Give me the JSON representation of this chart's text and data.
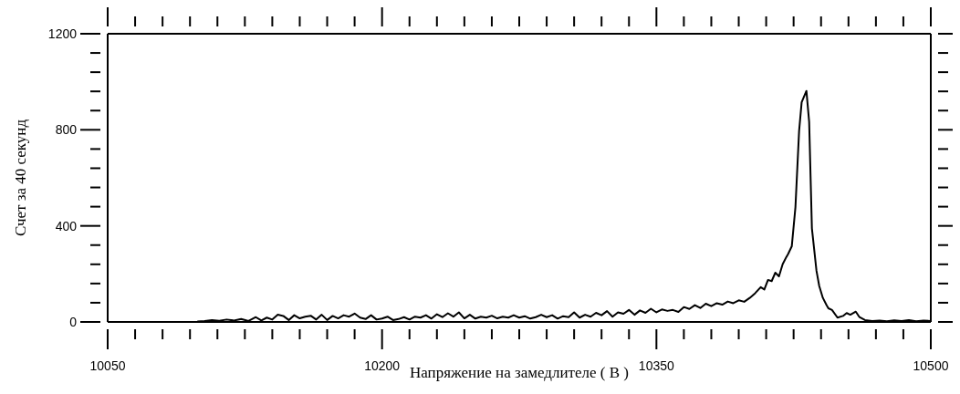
{
  "chart_data": {
    "type": "line",
    "xlabel": "Напряжение на замедлителе ( В )",
    "ylabel": "Счет за 40 секунд",
    "xlim": [
      10050,
      10500
    ],
    "xticks": [
      10050,
      {
        "value": 10065,
        "label": null
      },
      {
        "value": 10080,
        "label": null
      },
      {
        "value": 10095,
        "label": null
      },
      {
        "value": 10110,
        "label": null
      },
      {
        "value": 10125,
        "label": null
      },
      {
        "value": 10140,
        "label": null
      },
      {
        "value": 10155,
        "label": null
      },
      {
        "value": 10170,
        "label": null
      },
      {
        "value": 10185,
        "label": null
      },
      10200,
      {
        "value": 10215,
        "label": null
      },
      {
        "value": 10230,
        "label": null
      },
      {
        "value": 10245,
        "label": null
      },
      {
        "value": 10260,
        "label": null
      },
      {
        "value": 10275,
        "label": null
      },
      {
        "value": 10290,
        "label": null
      },
      {
        "value": 10305,
        "label": null
      },
      {
        "value": 10320,
        "label": null
      },
      {
        "value": 10335,
        "label": null
      },
      10350,
      {
        "value": 10365,
        "label": null
      },
      {
        "value": 10380,
        "label": null
      },
      {
        "value": 10395,
        "label": null
      },
      {
        "value": 10410,
        "label": null
      },
      {
        "value": 10425,
        "label": null
      },
      {
        "value": 10440,
        "label": null
      },
      {
        "value": 10455,
        "label": null
      },
      {
        "value": 10470,
        "label": null
      },
      {
        "value": 10485,
        "label": null
      },
      10500
    ],
    "ylim": [
      0,
      1200
    ],
    "yticks": [
      0,
      {
        "value": 80,
        "label": null
      },
      {
        "value": 160,
        "label": null
      },
      {
        "value": 240,
        "label": null
      },
      {
        "value": 320,
        "label": null
      },
      400,
      {
        "value": 480,
        "label": null
      },
      {
        "value": 560,
        "label": null
      },
      {
        "value": 640,
        "label": null
      },
      {
        "value": 720,
        "label": null
      },
      800,
      {
        "value": 880,
        "label": null
      },
      {
        "value": 960,
        "label": null
      },
      {
        "value": 1040,
        "label": null
      },
      {
        "value": 1120,
        "label": null
      },
      1200
    ],
    "x": [
      10099,
      10103,
      10107,
      10111,
      10115,
      10119,
      10123,
      10127,
      10131,
      10134,
      10137,
      10140,
      10143,
      10146,
      10149,
      10152,
      10155,
      10158,
      10161,
      10164,
      10167,
      10170,
      10173,
      10176,
      10179,
      10182,
      10185,
      10188,
      10191,
      10194,
      10197,
      10200,
      10203,
      10206,
      10209,
      10212,
      10215,
      10218,
      10221,
      10224,
      10227,
      10230,
      10233,
      10236,
      10239,
      10242,
      10245,
      10248,
      10251,
      10254,
      10257,
      10260,
      10263,
      10266,
      10269,
      10272,
      10275,
      10278,
      10281,
      10284,
      10287,
      10290,
      10293,
      10296,
      10299,
      10302,
      10305,
      10308,
      10311,
      10314,
      10317,
      10320,
      10323,
      10326,
      10329,
      10332,
      10335,
      10338,
      10341,
      10344,
      10347,
      10350,
      10353,
      10356,
      10359,
      10362,
      10365,
      10368,
      10371,
      10374,
      10377,
      10380,
      10383,
      10386,
      10389,
      10392,
      10395,
      10398,
      10401,
      10404,
      10407,
      10409,
      10411,
      10413,
      10415,
      10417,
      10419,
      10421,
      10422,
      10424,
      10426,
      10428,
      10429.4,
      10432,
      10433.5,
      10435,
      10437.5,
      10439,
      10441,
      10443,
      10444,
      10446,
      10449,
      10452,
      10454,
      10456,
      10459,
      10461,
      10464,
      10468,
      10472,
      10476,
      10480,
      10484,
      10488,
      10492,
      10496,
      10500
    ],
    "series": [
      {
        "color": "#000000",
        "values": [
          2,
          4,
          8,
          5,
          10,
          6,
          12,
          4,
          20,
          6,
          18,
          10,
          30,
          25,
          8,
          28,
          15,
          22,
          26,
          10,
          30,
          8,
          25,
          15,
          28,
          22,
          35,
          18,
          12,
          28,
          10,
          14,
          22,
          8,
          12,
          20,
          10,
          22,
          18,
          28,
          14,
          32,
          20,
          36,
          22,
          40,
          15,
          30,
          14,
          22,
          18,
          26,
          15,
          22,
          18,
          28,
          18,
          24,
          14,
          20,
          30,
          20,
          28,
          14,
          24,
          20,
          40,
          18,
          30,
          22,
          38,
          28,
          45,
          22,
          40,
          34,
          50,
          30,
          48,
          38,
          55,
          40,
          52,
          46,
          50,
          42,
          62,
          54,
          70,
          58,
          76,
          66,
          78,
          72,
          85,
          78,
          90,
          84,
          100,
          120,
          145,
          135,
          175,
          170,
          205,
          190,
          240,
          270,
          283,
          315,
          478,
          795,
          915,
          962,
          833,
          390,
          213,
          150,
          100,
          70,
          57,
          50,
          18,
          25,
          37,
          30,
          43,
          20,
          8,
          4,
          6,
          3,
          7,
          4,
          8,
          3,
          6,
          4
        ]
      }
    ]
  }
}
